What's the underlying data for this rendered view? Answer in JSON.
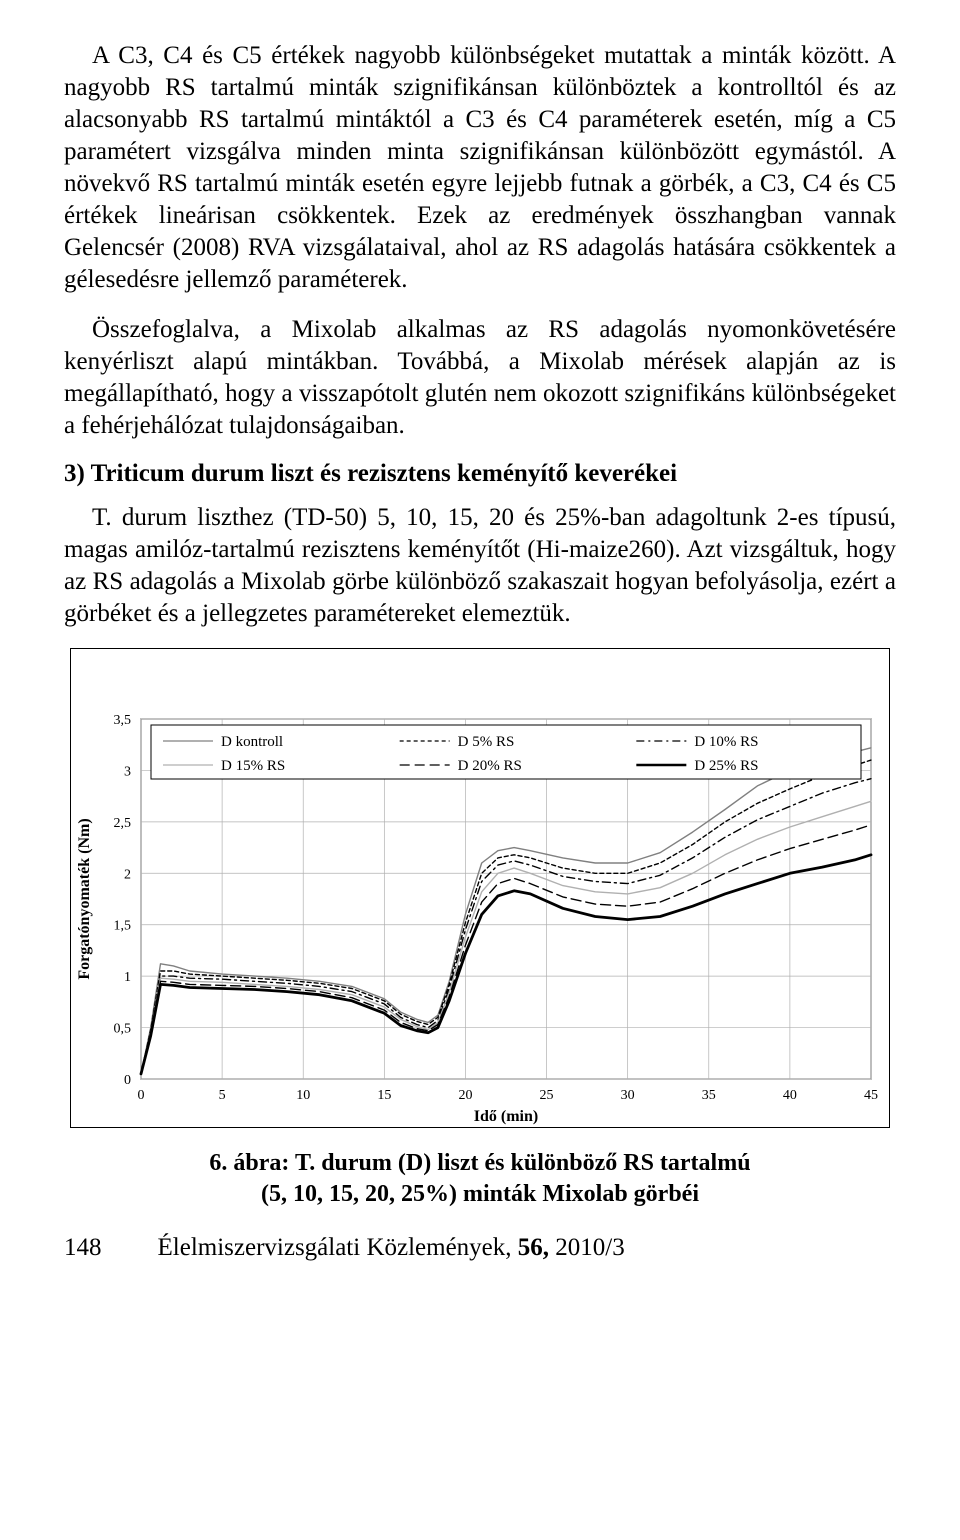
{
  "paragraphs": {
    "p1a": "A C3, C4 és C5 értékek nagyobb különbségeket mutattak a minták között. A nagyobb RS tartalmú minták szignifikánsan különböztek a kontrolltól és az alacsonyabb RS tartalmú mintáktól a C3 és C4 paraméterek esetén, míg a C5 paramétert vizsgálva minden minta szignifikánsan különbözött egymástól. A növekvő RS tartalmú minták esetén egyre lejjebb futnak a görbék, a C3, C4 és C5 értékek lineárisan csökkentek. Ezek az eredmények összhangban vannak Gelencsér (2008) RVA vizsgálataival, ahol az RS adagolás hatására csökkentek a gélesedésre jellemző paraméterek.",
    "p2": "Összefoglalva, a Mixolab alkalmas az RS adagolás nyomonkövetésére kenyérliszt alapú mintákban. Továbbá, a Mixolab mérések alapján az is megállapítható, hogy a visszapótolt glutén nem okozott szignifikáns különbségeket a fehérjehálózat tulajdonságaiban.",
    "section_title": "3) Triticum durum liszt és rezisztens keményítő keverékei",
    "p3": "T. durum liszthez (TD-50) 5, 10, 15, 20 és 25%-ban adagoltunk 2-es típusú, magas amilóz-tartalmú rezisztens keményítőt (Hi-maize260). Azt vizsgáltuk, hogy az RS adagolás a Mixolab görbe különböző szakaszait hogyan befolyásolja, ezért a görbéket és a jellegzetes paramétereket elemeztük."
  },
  "chart": {
    "type": "line",
    "title": "",
    "xlabel": "Idő (min)",
    "ylabel": "Forgatónyomaték (Nm)",
    "label_fontsize": 16,
    "tick_fontsize": 14,
    "xlim": [
      0,
      45
    ],
    "ylim": [
      0,
      3.5
    ],
    "xticks": [
      0,
      5,
      10,
      15,
      20,
      25,
      30,
      35,
      40,
      45
    ],
    "yticks": [
      0,
      0.5,
      1,
      1.5,
      2,
      2.5,
      3,
      3.5
    ],
    "ytick_labels": [
      "0",
      "0,5",
      "1",
      "1,5",
      "2",
      "2,5",
      "3",
      "3,5"
    ],
    "background_color": "#ffffff",
    "grid_color": "#b0b0b0",
    "grid_on": true,
    "legend": {
      "position": "top-inside",
      "border_color": "#000000",
      "items": [
        {
          "label": "D kontroll",
          "color": "#808080",
          "dash": "solid",
          "width": 1.2
        },
        {
          "label": "D 5% RS",
          "color": "#000000",
          "dash": "dash-short",
          "width": 1.2
        },
        {
          "label": "D 10% RS",
          "color": "#000000",
          "dash": "dash-dot",
          "width": 1.2
        },
        {
          "label": "D 15% RS",
          "color": "#b0b0b0",
          "dash": "solid",
          "width": 1.2
        },
        {
          "label": "D 20% RS",
          "color": "#000000",
          "dash": "dash-long",
          "width": 1.2
        },
        {
          "label": "D 25% RS",
          "color": "#000000",
          "dash": "solid",
          "width": 2.6
        }
      ]
    },
    "series": [
      {
        "name": "D kontroll",
        "color": "#808080",
        "dash": "",
        "width": 1.4,
        "points": [
          [
            0,
            0.05
          ],
          [
            0.6,
            0.5
          ],
          [
            1.2,
            1.12
          ],
          [
            2,
            1.1
          ],
          [
            3,
            1.05
          ],
          [
            5,
            1.02
          ],
          [
            7,
            1.0
          ],
          [
            9,
            0.98
          ],
          [
            11,
            0.95
          ],
          [
            13,
            0.9
          ],
          [
            15,
            0.78
          ],
          [
            16,
            0.65
          ],
          [
            17,
            0.58
          ],
          [
            17.7,
            0.55
          ],
          [
            18.3,
            0.62
          ],
          [
            19,
            0.95
          ],
          [
            20,
            1.6
          ],
          [
            21,
            2.1
          ],
          [
            22,
            2.22
          ],
          [
            23,
            2.25
          ],
          [
            24,
            2.22
          ],
          [
            26,
            2.15
          ],
          [
            28,
            2.1
          ],
          [
            30,
            2.1
          ],
          [
            32,
            2.2
          ],
          [
            34,
            2.4
          ],
          [
            36,
            2.62
          ],
          [
            38,
            2.85
          ],
          [
            40,
            3.0
          ],
          [
            42,
            3.1
          ],
          [
            44,
            3.18
          ],
          [
            45,
            3.22
          ]
        ]
      },
      {
        "name": "D 5% RS",
        "color": "#000000",
        "dash": "4 3",
        "width": 1.4,
        "points": [
          [
            0,
            0.05
          ],
          [
            0.6,
            0.48
          ],
          [
            1.2,
            1.05
          ],
          [
            2,
            1.05
          ],
          [
            3,
            1.02
          ],
          [
            5,
            1.0
          ],
          [
            7,
            0.98
          ],
          [
            9,
            0.96
          ],
          [
            11,
            0.93
          ],
          [
            13,
            0.88
          ],
          [
            15,
            0.76
          ],
          [
            16,
            0.63
          ],
          [
            17,
            0.56
          ],
          [
            17.7,
            0.53
          ],
          [
            18.3,
            0.6
          ],
          [
            19,
            0.92
          ],
          [
            20,
            1.52
          ],
          [
            21,
            2.0
          ],
          [
            22,
            2.15
          ],
          [
            23,
            2.18
          ],
          [
            24,
            2.15
          ],
          [
            26,
            2.05
          ],
          [
            28,
            2.0
          ],
          [
            30,
            2.0
          ],
          [
            32,
            2.1
          ],
          [
            34,
            2.28
          ],
          [
            36,
            2.5
          ],
          [
            38,
            2.68
          ],
          [
            40,
            2.82
          ],
          [
            42,
            2.95
          ],
          [
            44,
            3.05
          ],
          [
            45,
            3.1
          ]
        ]
      },
      {
        "name": "D 10% RS",
        "color": "#000000",
        "dash": "8 4 2 4",
        "width": 1.4,
        "points": [
          [
            0,
            0.05
          ],
          [
            0.6,
            0.46
          ],
          [
            1.2,
            1.0
          ],
          [
            2,
            1.0
          ],
          [
            3,
            0.98
          ],
          [
            5,
            0.97
          ],
          [
            7,
            0.95
          ],
          [
            9,
            0.93
          ],
          [
            11,
            0.9
          ],
          [
            13,
            0.85
          ],
          [
            15,
            0.73
          ],
          [
            16,
            0.6
          ],
          [
            17,
            0.53
          ],
          [
            17.7,
            0.5
          ],
          [
            18.3,
            0.57
          ],
          [
            19,
            0.88
          ],
          [
            20,
            1.45
          ],
          [
            21,
            1.92
          ],
          [
            22,
            2.08
          ],
          [
            23,
            2.12
          ],
          [
            24,
            2.08
          ],
          [
            26,
            1.97
          ],
          [
            28,
            1.92
          ],
          [
            30,
            1.9
          ],
          [
            32,
            1.98
          ],
          [
            34,
            2.15
          ],
          [
            36,
            2.35
          ],
          [
            38,
            2.52
          ],
          [
            40,
            2.65
          ],
          [
            42,
            2.78
          ],
          [
            44,
            2.88
          ],
          [
            45,
            2.92
          ]
        ]
      },
      {
        "name": "D 15% RS",
        "color": "#b0b0b0",
        "dash": "",
        "width": 1.4,
        "points": [
          [
            0,
            0.05
          ],
          [
            0.6,
            0.45
          ],
          [
            1.2,
            0.98
          ],
          [
            2,
            0.97
          ],
          [
            3,
            0.95
          ],
          [
            5,
            0.94
          ],
          [
            7,
            0.92
          ],
          [
            9,
            0.9
          ],
          [
            11,
            0.87
          ],
          [
            13,
            0.82
          ],
          [
            15,
            0.7
          ],
          [
            16,
            0.58
          ],
          [
            17,
            0.51
          ],
          [
            17.7,
            0.48
          ],
          [
            18.3,
            0.55
          ],
          [
            19,
            0.84
          ],
          [
            20,
            1.38
          ],
          [
            21,
            1.82
          ],
          [
            22,
            2.0
          ],
          [
            23,
            2.05
          ],
          [
            24,
            2.0
          ],
          [
            26,
            1.88
          ],
          [
            28,
            1.82
          ],
          [
            30,
            1.8
          ],
          [
            32,
            1.86
          ],
          [
            34,
            2.0
          ],
          [
            36,
            2.18
          ],
          [
            38,
            2.33
          ],
          [
            40,
            2.45
          ],
          [
            42,
            2.55
          ],
          [
            44,
            2.65
          ],
          [
            45,
            2.7
          ]
        ]
      },
      {
        "name": "D 20% RS",
        "color": "#000000",
        "dash": "10 5",
        "width": 1.4,
        "points": [
          [
            0,
            0.05
          ],
          [
            0.6,
            0.44
          ],
          [
            1.2,
            0.95
          ],
          [
            2,
            0.94
          ],
          [
            3,
            0.92
          ],
          [
            5,
            0.91
          ],
          [
            7,
            0.9
          ],
          [
            9,
            0.88
          ],
          [
            11,
            0.85
          ],
          [
            13,
            0.79
          ],
          [
            15,
            0.67
          ],
          [
            16,
            0.55
          ],
          [
            17,
            0.49
          ],
          [
            17.7,
            0.47
          ],
          [
            18.3,
            0.53
          ],
          [
            19,
            0.8
          ],
          [
            20,
            1.3
          ],
          [
            21,
            1.72
          ],
          [
            22,
            1.9
          ],
          [
            23,
            1.95
          ],
          [
            24,
            1.9
          ],
          [
            26,
            1.77
          ],
          [
            28,
            1.7
          ],
          [
            30,
            1.68
          ],
          [
            32,
            1.72
          ],
          [
            34,
            1.85
          ],
          [
            36,
            2.0
          ],
          [
            38,
            2.13
          ],
          [
            40,
            2.24
          ],
          [
            42,
            2.33
          ],
          [
            44,
            2.42
          ],
          [
            45,
            2.47
          ]
        ]
      },
      {
        "name": "D 25% RS",
        "color": "#000000",
        "dash": "",
        "width": 2.8,
        "points": [
          [
            0,
            0.05
          ],
          [
            0.6,
            0.42
          ],
          [
            1.2,
            0.92
          ],
          [
            2,
            0.91
          ],
          [
            3,
            0.89
          ],
          [
            5,
            0.88
          ],
          [
            7,
            0.87
          ],
          [
            9,
            0.85
          ],
          [
            11,
            0.82
          ],
          [
            13,
            0.76
          ],
          [
            15,
            0.64
          ],
          [
            16,
            0.52
          ],
          [
            17,
            0.47
          ],
          [
            17.7,
            0.45
          ],
          [
            18.3,
            0.5
          ],
          [
            19,
            0.76
          ],
          [
            20,
            1.22
          ],
          [
            21,
            1.6
          ],
          [
            22,
            1.78
          ],
          [
            23,
            1.83
          ],
          [
            24,
            1.8
          ],
          [
            26,
            1.66
          ],
          [
            28,
            1.58
          ],
          [
            30,
            1.55
          ],
          [
            32,
            1.58
          ],
          [
            34,
            1.68
          ],
          [
            36,
            1.8
          ],
          [
            38,
            1.9
          ],
          [
            40,
            2.0
          ],
          [
            42,
            2.06
          ],
          [
            44,
            2.13
          ],
          [
            45,
            2.18
          ]
        ]
      }
    ]
  },
  "caption_line1": "6. ábra: T. durum (D) liszt és különböző RS tartalmú",
  "caption_line2": "(5, 10, 15, 20, 25%) minták Mixolab görbéi",
  "footer": {
    "page": "148",
    "journal": "Élelmiszervizsgálati Közlemények, ",
    "vol": "56, ",
    "issue": "2010/3"
  }
}
